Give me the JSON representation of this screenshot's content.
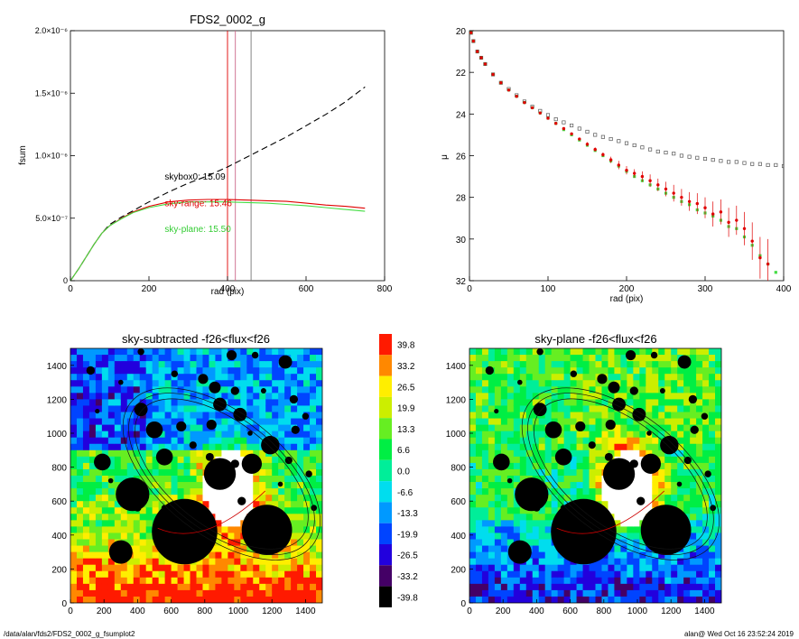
{
  "footer": {
    "left": "/data/alan/fds2/FDS2_0002_g_fsumplot2",
    "right": "alan@  Wed Oct 16 23:52:24 2019"
  },
  "chart_data": [
    {
      "type": "line",
      "title": "FDS2_0002_g",
      "xlabel": "rad (pix)",
      "ylabel": "fsum",
      "xlim": [
        0,
        800
      ],
      "ylim": [
        0,
        2e-06
      ],
      "xticks": [
        "0",
        "200",
        "400",
        "600",
        "800"
      ],
      "yticks": [
        "0",
        "5.0×10⁻⁷",
        "1.0×10⁻⁶",
        "1.5×10⁻⁶",
        "2.0×10⁻⁶"
      ],
      "yticks_values": [
        0,
        5e-07,
        1e-06,
        1.5e-06,
        2e-06
      ],
      "series": [
        {
          "color": "#000000",
          "dashed": true,
          "x": [
            0,
            20,
            40,
            60,
            80,
            100,
            130,
            160,
            200,
            250,
            300,
            350,
            400,
            450,
            500,
            550,
            600,
            650,
            700,
            750
          ],
          "y": [
            0,
            9e-08,
            1.9e-07,
            2.9e-07,
            3.8e-07,
            4.5e-07,
            5.1e-07,
            5.6e-07,
            6.3e-07,
            7.1e-07,
            7.8e-07,
            8.4e-07,
            9.1e-07,
            9.9e-07,
            1.07e-06,
            1.15e-06,
            1.24e-06,
            1.33e-06,
            1.43e-06,
            1.55e-06
          ]
        },
        {
          "color": "#e00000",
          "dashed": false,
          "x": [
            0,
            20,
            40,
            60,
            80,
            100,
            130,
            160,
            200,
            250,
            300,
            350,
            400,
            450,
            500,
            550,
            600,
            650,
            700,
            750
          ],
          "y": [
            0,
            9e-08,
            1.9e-07,
            2.9e-07,
            3.8e-07,
            4.4e-07,
            5e-07,
            5.5e-07,
            5.95e-07,
            6.3e-07,
            6.45e-07,
            6.5e-07,
            6.5e-07,
            6.45e-07,
            6.4e-07,
            6.35e-07,
            6.2e-07,
            6.05e-07,
            5.95e-07,
            5.8e-07
          ]
        },
        {
          "color": "#44dd44",
          "dashed": false,
          "x": [
            0,
            20,
            40,
            60,
            80,
            100,
            130,
            160,
            200,
            250,
            300,
            350,
            400,
            450,
            500,
            550,
            600,
            650,
            700,
            750
          ],
          "y": [
            0,
            9e-08,
            1.9e-07,
            2.9e-07,
            3.8e-07,
            4.4e-07,
            4.95e-07,
            5.45e-07,
            5.85e-07,
            6.15e-07,
            6.3e-07,
            6.3e-07,
            6.3e-07,
            6.25e-07,
            6.2e-07,
            6.1e-07,
            6e-07,
            5.85e-07,
            5.7e-07,
            5.55e-07
          ]
        }
      ],
      "vlines": [
        {
          "x": 400,
          "color": "#e00000"
        },
        {
          "x": 420,
          "color": "#cc6688"
        },
        {
          "x": 460,
          "color": "#777777"
        }
      ],
      "annotations": [
        {
          "text": "skybox0: 15.09",
          "x": 240,
          "y": 8.1e-07,
          "color": "#000000"
        },
        {
          "text": "sky-range: 15.46",
          "x": 240,
          "y": 5.95e-07,
          "color": "#e00000"
        },
        {
          "text": "sky-plane: 15.50",
          "x": 240,
          "y": 3.9e-07,
          "color": "#33cc33"
        }
      ]
    },
    {
      "type": "scatter",
      "title": "",
      "xlabel": "rad (pix)",
      "ylabel": "μ",
      "xlim": [
        0,
        400
      ],
      "ylim": [
        32,
        20
      ],
      "xticks": [
        "0",
        "100",
        "200",
        "300",
        "400"
      ],
      "yticks": [
        "20",
        "22",
        "24",
        "26",
        "28",
        "30",
        "32"
      ],
      "yticks_values": [
        20,
        22,
        24,
        26,
        28,
        30,
        32
      ],
      "series": [
        {
          "color": "#555555",
          "marker": "open-square",
          "x": [
            2,
            5,
            10,
            15,
            20,
            30,
            40,
            50,
            60,
            70,
            80,
            90,
            100,
            110,
            120,
            130,
            140,
            150,
            160,
            170,
            180,
            190,
            200,
            210,
            220,
            230,
            240,
            250,
            260,
            270,
            280,
            290,
            300,
            310,
            320,
            330,
            340,
            350,
            360,
            370,
            380,
            390,
            400
          ],
          "y": [
            20.1,
            20.5,
            21.0,
            21.3,
            21.6,
            22.1,
            22.5,
            22.8,
            23.1,
            23.4,
            23.65,
            23.85,
            24.05,
            24.25,
            24.4,
            24.55,
            24.7,
            24.85,
            25.0,
            25.1,
            25.2,
            25.3,
            25.4,
            25.5,
            25.6,
            25.7,
            25.8,
            25.85,
            25.9,
            26.0,
            26.05,
            26.1,
            26.15,
            26.2,
            26.25,
            26.3,
            26.3,
            26.35,
            26.4,
            26.4,
            26.45,
            26.45,
            26.5
          ]
        },
        {
          "color": "#e00000",
          "marker": "filled-circle-errorbar",
          "x": [
            2,
            5,
            10,
            15,
            20,
            30,
            40,
            50,
            60,
            70,
            80,
            90,
            100,
            110,
            120,
            130,
            140,
            150,
            160,
            170,
            180,
            190,
            200,
            210,
            220,
            230,
            240,
            250,
            260,
            270,
            280,
            290,
            300,
            310,
            320,
            330,
            340,
            350,
            360,
            370,
            380
          ],
          "y": [
            20.1,
            20.5,
            21.0,
            21.3,
            21.6,
            22.1,
            22.5,
            22.85,
            23.15,
            23.45,
            23.7,
            23.95,
            24.2,
            24.45,
            24.7,
            24.95,
            25.2,
            25.45,
            25.7,
            25.95,
            26.2,
            26.45,
            26.7,
            26.85,
            27.0,
            27.2,
            27.4,
            27.6,
            27.8,
            28.0,
            28.2,
            28.3,
            28.5,
            28.8,
            28.7,
            29.2,
            29.1,
            29.5,
            30.1,
            30.9,
            31.2
          ],
          "yerr": [
            0,
            0,
            0,
            0,
            0,
            0,
            0,
            0,
            0,
            0,
            0,
            0,
            0,
            0,
            0,
            0.05,
            0.05,
            0.1,
            0.1,
            0.1,
            0.15,
            0.2,
            0.2,
            0.2,
            0.25,
            0.3,
            0.3,
            0.35,
            0.4,
            0.4,
            0.45,
            0.5,
            0.5,
            0.6,
            0.6,
            0.7,
            0.7,
            0.8,
            0.9,
            1.0,
            1.2
          ]
        },
        {
          "color": "#44dd44",
          "marker": "filled-square",
          "x": [
            2,
            5,
            10,
            15,
            20,
            30,
            40,
            50,
            60,
            70,
            80,
            90,
            100,
            110,
            120,
            130,
            140,
            150,
            160,
            170,
            180,
            190,
            200,
            210,
            220,
            230,
            240,
            250,
            260,
            270,
            280,
            290,
            300,
            310,
            320,
            330,
            340,
            350,
            360,
            370,
            380,
            390
          ],
          "y": [
            20.1,
            20.5,
            21.0,
            21.3,
            21.6,
            22.1,
            22.5,
            22.85,
            23.15,
            23.45,
            23.7,
            23.95,
            24.2,
            24.45,
            24.75,
            25.0,
            25.25,
            25.5,
            25.75,
            26.0,
            26.25,
            26.5,
            26.75,
            27.0,
            27.2,
            27.4,
            27.6,
            27.8,
            28.0,
            28.2,
            28.35,
            28.6,
            28.75,
            28.9,
            29.1,
            29.4,
            29.5,
            29.9,
            30.3,
            30.8,
            31.2,
            31.6
          ]
        }
      ]
    },
    {
      "type": "heatmap",
      "title": "sky-subtracted -f26<flux<f26",
      "xlim": [
        0,
        1500
      ],
      "ylim": [
        0,
        1500
      ],
      "xticks": [
        "0",
        "200",
        "400",
        "600",
        "800",
        "1000",
        "1200",
        "1400"
      ],
      "yticks": [
        "0",
        "200",
        "400",
        "600",
        "800",
        "1000",
        "1200",
        "1400"
      ],
      "masks": [
        [
          680,
          420,
          195
        ],
        [
          1170,
          430,
          150
        ],
        [
          370,
          640,
          100
        ],
        [
          890,
          760,
          95
        ],
        [
          300,
          300,
          70
        ],
        [
          560,
          860,
          50
        ],
        [
          1080,
          820,
          60
        ],
        [
          1190,
          930,
          55
        ],
        [
          190,
          830,
          50
        ],
        [
          500,
          1020,
          50
        ],
        [
          1010,
          1110,
          40
        ],
        [
          890,
          1170,
          40
        ],
        [
          420,
          1140,
          40
        ],
        [
          860,
          1270,
          35
        ],
        [
          790,
          1320,
          30
        ],
        [
          660,
          1040,
          30
        ],
        [
          1330,
          1200,
          25
        ],
        [
          840,
          1050,
          30
        ],
        [
          1280,
          1420,
          40
        ],
        [
          1340,
          1020,
          25
        ],
        [
          980,
          1250,
          25
        ],
        [
          120,
          1370,
          25
        ],
        [
          1420,
          760,
          20
        ],
        [
          1020,
          600,
          25
        ],
        [
          730,
          930,
          22
        ],
        [
          960,
          1460,
          30
        ],
        [
          620,
          1350,
          20
        ],
        [
          1400,
          1100,
          20
        ],
        [
          1250,
          700,
          15
        ],
        [
          300,
          1300,
          15
        ],
        [
          1450,
          560,
          18
        ],
        [
          400,
          560,
          22
        ],
        [
          560,
          560,
          18
        ],
        [
          240,
          720,
          15
        ],
        [
          1300,
          840,
          22
        ],
        [
          1070,
          1000,
          15
        ],
        [
          980,
          820,
          25
        ],
        [
          830,
          860,
          24
        ],
        [
          420,
          1480,
          20
        ],
        [
          1100,
          1460,
          20
        ],
        [
          160,
          1130,
          14
        ],
        [
          1150,
          1250,
          16
        ]
      ]
    },
    {
      "type": "heatmap",
      "title": "sky-plane -f26<flux<f26",
      "xlim": [
        0,
        1500
      ],
      "ylim": [
        0,
        1500
      ],
      "xticks": [
        "0",
        "200",
        "400",
        "600",
        "800",
        "1000",
        "1200",
        "1400"
      ],
      "yticks": [
        "0",
        "200",
        "400",
        "600",
        "800",
        "1000",
        "1200",
        "1400"
      ]
    }
  ],
  "colorbar": {
    "labels": [
      "39.8",
      "33.2",
      "26.5",
      "19.9",
      "13.3",
      "6.6",
      "0.0",
      "-6.6",
      "-13.3",
      "-19.9",
      "-26.5",
      "-33.2",
      "-39.8"
    ],
    "colors": [
      "#ff1a00",
      "#ff8800",
      "#ffee00",
      "#ccee00",
      "#66ee22",
      "#00ee44",
      "#00ee99",
      "#00ddee",
      "#0099ff",
      "#0044ff",
      "#2200dd",
      "#440066",
      "#000000"
    ]
  }
}
